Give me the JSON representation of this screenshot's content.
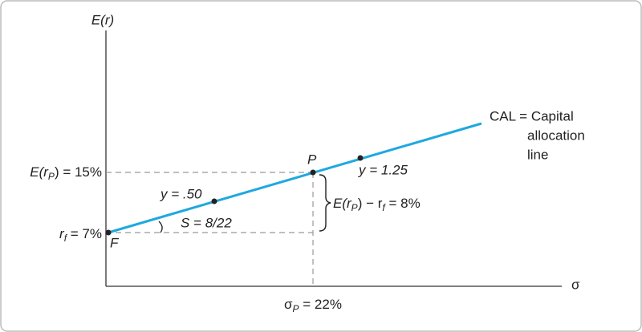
{
  "axes": {
    "y_label": "E(r)",
    "x_label": "σ"
  },
  "labels": {
    "erp": [
      "E(r",
      "P",
      ") = 15%"
    ],
    "rf": [
      "r",
      "f",
      " = 7%"
    ],
    "sigma_p": [
      "σ",
      "P",
      " = 22%"
    ],
    "point_f": "F",
    "point_p": "P",
    "y50": "y = .50",
    "y125": "y = 1.25",
    "slope": "S = 8/22",
    "premium": [
      "E(r",
      "P",
      ") − r",
      "f",
      " = 8%"
    ],
    "cal": [
      "CAL = Capital",
      "allocation",
      "line"
    ]
  }
}
